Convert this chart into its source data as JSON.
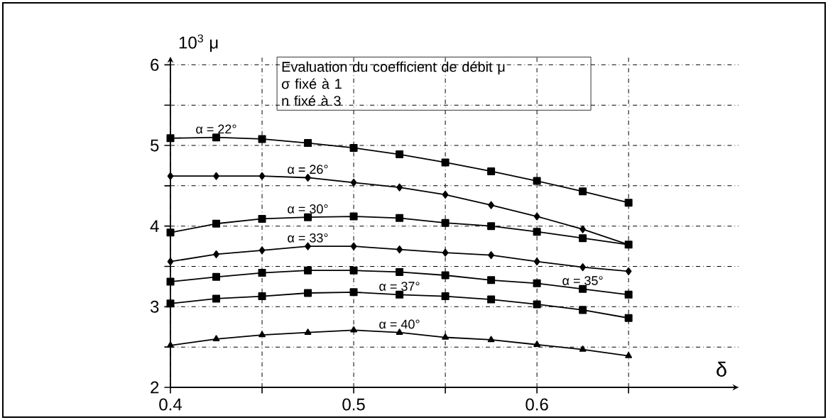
{
  "chart_data": {
    "type": "line",
    "xlabel": "δ",
    "ylabel": "10$^{3}$ μ",
    "annotations": [
      "Evaluation du coefficient de débit μ",
      "σ fixé à 1",
      "n fixé à 3"
    ],
    "x": [
      0.4,
      0.425,
      0.45,
      0.475,
      0.5,
      0.525,
      0.55,
      0.575,
      0.6,
      0.625,
      0.65
    ],
    "series": [
      {
        "name": "α = 22°",
        "color": "#000000",
        "marker": "square",
        "values": [
          5.09,
          5.1,
          5.08,
          5.03,
          4.97,
          4.89,
          4.79,
          4.68,
          4.56,
          4.43,
          4.29
        ]
      },
      {
        "name": "α = 26°",
        "color": "#000000",
        "marker": "diamond",
        "values": [
          4.62,
          4.62,
          4.62,
          4.6,
          4.54,
          4.48,
          4.39,
          4.26,
          4.12,
          3.96,
          3.77
        ]
      },
      {
        "name": "α = 30°",
        "color": "#000000",
        "marker": "square",
        "values": [
          3.92,
          4.03,
          4.09,
          4.11,
          4.12,
          4.1,
          4.04,
          4.0,
          3.93,
          3.85,
          3.77
        ]
      },
      {
        "name": "α = 33°",
        "color": "#000000",
        "marker": "diamond",
        "values": [
          3.56,
          3.65,
          3.7,
          3.75,
          3.75,
          3.71,
          3.67,
          3.64,
          3.56,
          3.49,
          3.44
        ]
      },
      {
        "name": "α = 35°",
        "color": "#000000",
        "marker": "square",
        "values": [
          3.31,
          3.37,
          3.42,
          3.45,
          3.45,
          3.43,
          3.39,
          3.33,
          3.29,
          3.22,
          3.15
        ]
      },
      {
        "name": "α = 37°",
        "color": "#000000",
        "marker": "square",
        "values": [
          3.04,
          3.1,
          3.13,
          3.17,
          3.18,
          3.15,
          3.13,
          3.09,
          3.03,
          2.96,
          2.86
        ]
      },
      {
        "name": "α = 40°",
        "color": "#000000",
        "marker": "triangle",
        "values": [
          2.52,
          2.6,
          2.65,
          2.68,
          2.71,
          2.68,
          2.62,
          2.59,
          2.53,
          2.47,
          2.39
        ]
      }
    ],
    "xlim": [
      0.4,
      0.71
    ],
    "ylim": [
      2,
      6.1
    ],
    "xticks": [
      0.4,
      {
        "value": 0.45,
        "label": null
      },
      0.5,
      {
        "value": 0.55,
        "label": null
      },
      0.6,
      {
        "value": 0.65,
        "label": null
      }
    ],
    "yticks": [
      2,
      {
        "value": 2.5,
        "label": null
      },
      3,
      {
        "value": 3.5,
        "label": null
      },
      4,
      {
        "value": 4.5,
        "label": null
      },
      5,
      {
        "value": 5.5,
        "label": null
      },
      6
    ],
    "grid": true,
    "line_style": "solid"
  }
}
